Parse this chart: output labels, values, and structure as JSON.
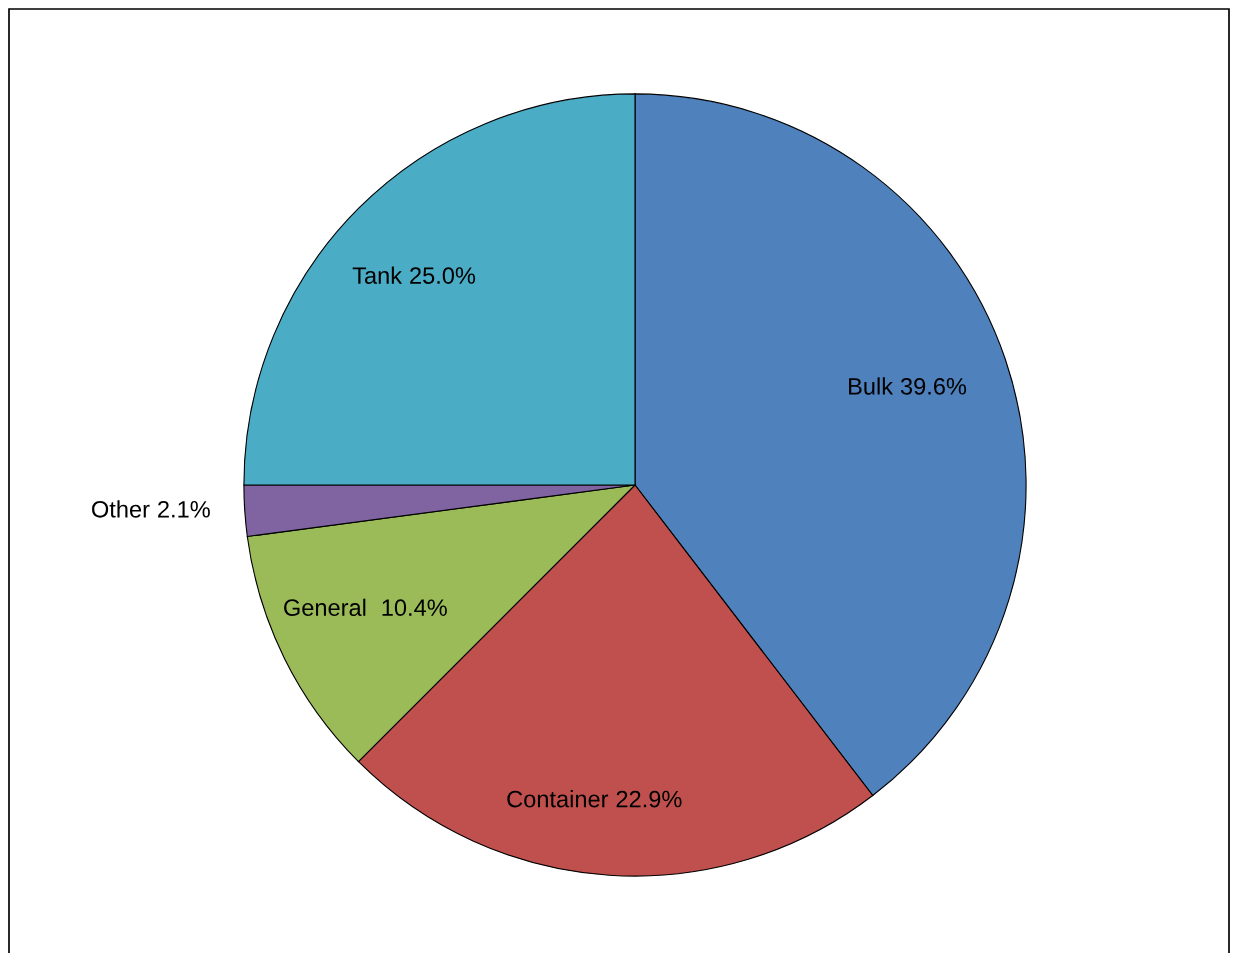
{
  "chart_data": {
    "type": "pie",
    "categories": [
      "Bulk",
      "Container",
      "General",
      "Other",
      "Tank"
    ],
    "values": [
      39.6,
      22.9,
      10.4,
      2.1,
      25.0
    ],
    "colors": [
      "#4f81bd",
      "#c0504d",
      "#9bbb59",
      "#8064a2",
      "#4bacc6"
    ],
    "value_labels": [
      "39.6%",
      "22.9%",
      "10.4%",
      "2.1%",
      "25.0%"
    ],
    "legend": false
  }
}
